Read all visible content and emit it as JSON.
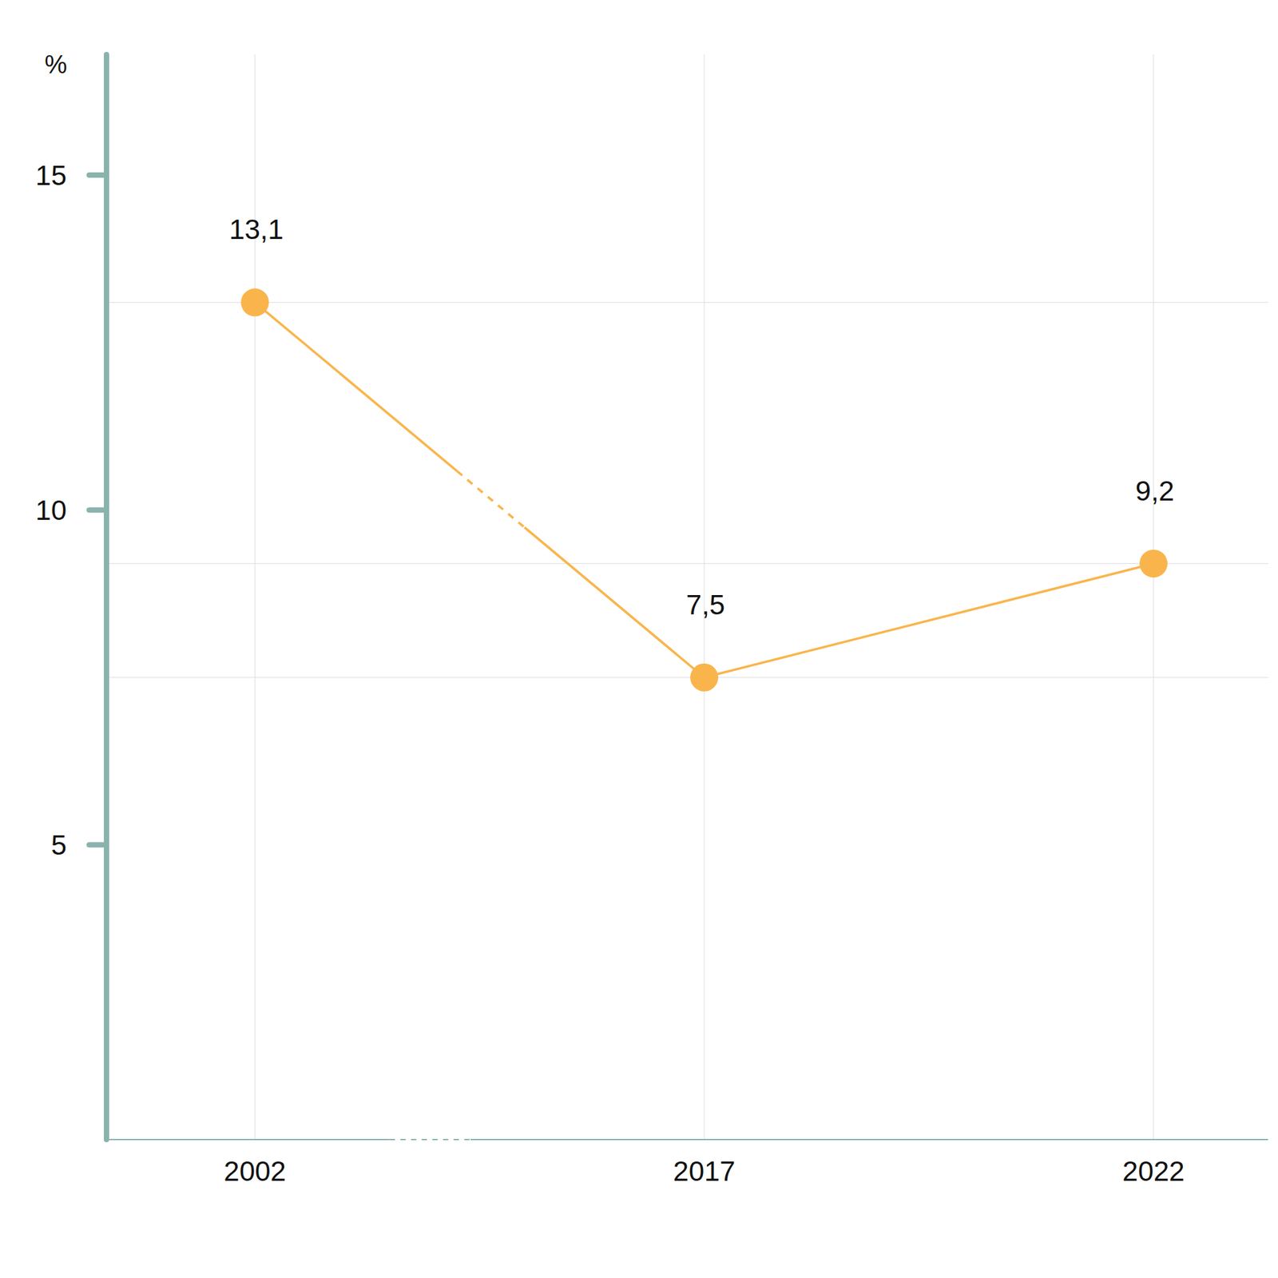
{
  "chart_data": {
    "type": "line",
    "y_label": "%",
    "categories": [
      "2002",
      "2017",
      "2022"
    ],
    "values": [
      13.1,
      7.5,
      9.2
    ],
    "value_labels": [
      "13,1",
      "7,5",
      "9,2"
    ],
    "color": "#f9b54c",
    "ylim": [
      0.6,
      16.8
    ],
    "yticks": [
      5,
      10,
      15
    ],
    "grid": true,
    "data_labels": true,
    "marker": "circle",
    "line_style": "solid"
  }
}
